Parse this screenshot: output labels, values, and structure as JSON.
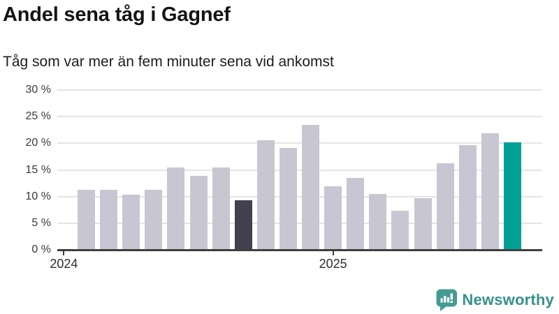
{
  "header": {
    "title": "Andel sena tåg i Gagnef",
    "subtitle": "Tåg som var mer än fem minuter sena vid ankomst"
  },
  "chart_data": {
    "type": "bar",
    "title": "Andel sena tåg i Gagnef",
    "subtitle": "Tåg som var mer än fem minuter sena vid ankomst",
    "unit": "%",
    "ylim": [
      0,
      30
    ],
    "grid": "horizontal gridlines on",
    "legend": "none",
    "y_ticks": [
      {
        "value": 0,
        "label": "0 %"
      },
      {
        "value": 5,
        "label": "5 %"
      },
      {
        "value": 10,
        "label": "10 %"
      },
      {
        "value": 15,
        "label": "15 %"
      },
      {
        "value": 20,
        "label": "20 %"
      },
      {
        "value": 25,
        "label": "25 %"
      },
      {
        "value": 30,
        "label": "30 %"
      }
    ],
    "categories": [
      "2024-02",
      "2024-03",
      "2024-04",
      "2024-05",
      "2024-06",
      "2024-07",
      "2024-08",
      "2024-09",
      "2024-10",
      "2024-11",
      "2024-12",
      "2025-01",
      "2025-02",
      "2025-03",
      "2025-04",
      "2025-05",
      "2025-06",
      "2025-07",
      "2025-08",
      "2025-09"
    ],
    "values": [
      11.2,
      11.1,
      10.2,
      11.1,
      15.3,
      13.7,
      15.3,
      9.2,
      20.4,
      19.0,
      23.3,
      11.8,
      13.3,
      10.3,
      7.2,
      9.5,
      16.1,
      19.5,
      21.7,
      20.0
    ],
    "x_ticks": [
      {
        "label": "2024",
        "slot": -1
      },
      {
        "label": "2025",
        "slot": 11
      }
    ],
    "highlight_dark_index": 7,
    "highlight_teal_index": 19,
    "colors": {
      "bar": "#c8c6d2",
      "bar_dark": "#42414e",
      "bar_teal": "#00a096",
      "gridline": "#e4e4e4",
      "axis": "#3f3f3f",
      "tick_text": "#3a3a3a"
    }
  },
  "footer": {
    "brand": "Newsworthy",
    "brand_color": "#37918c",
    "icon_color": "#459a92",
    "icon": "speech-bubble-with-bar-chart-and-exclamation"
  }
}
